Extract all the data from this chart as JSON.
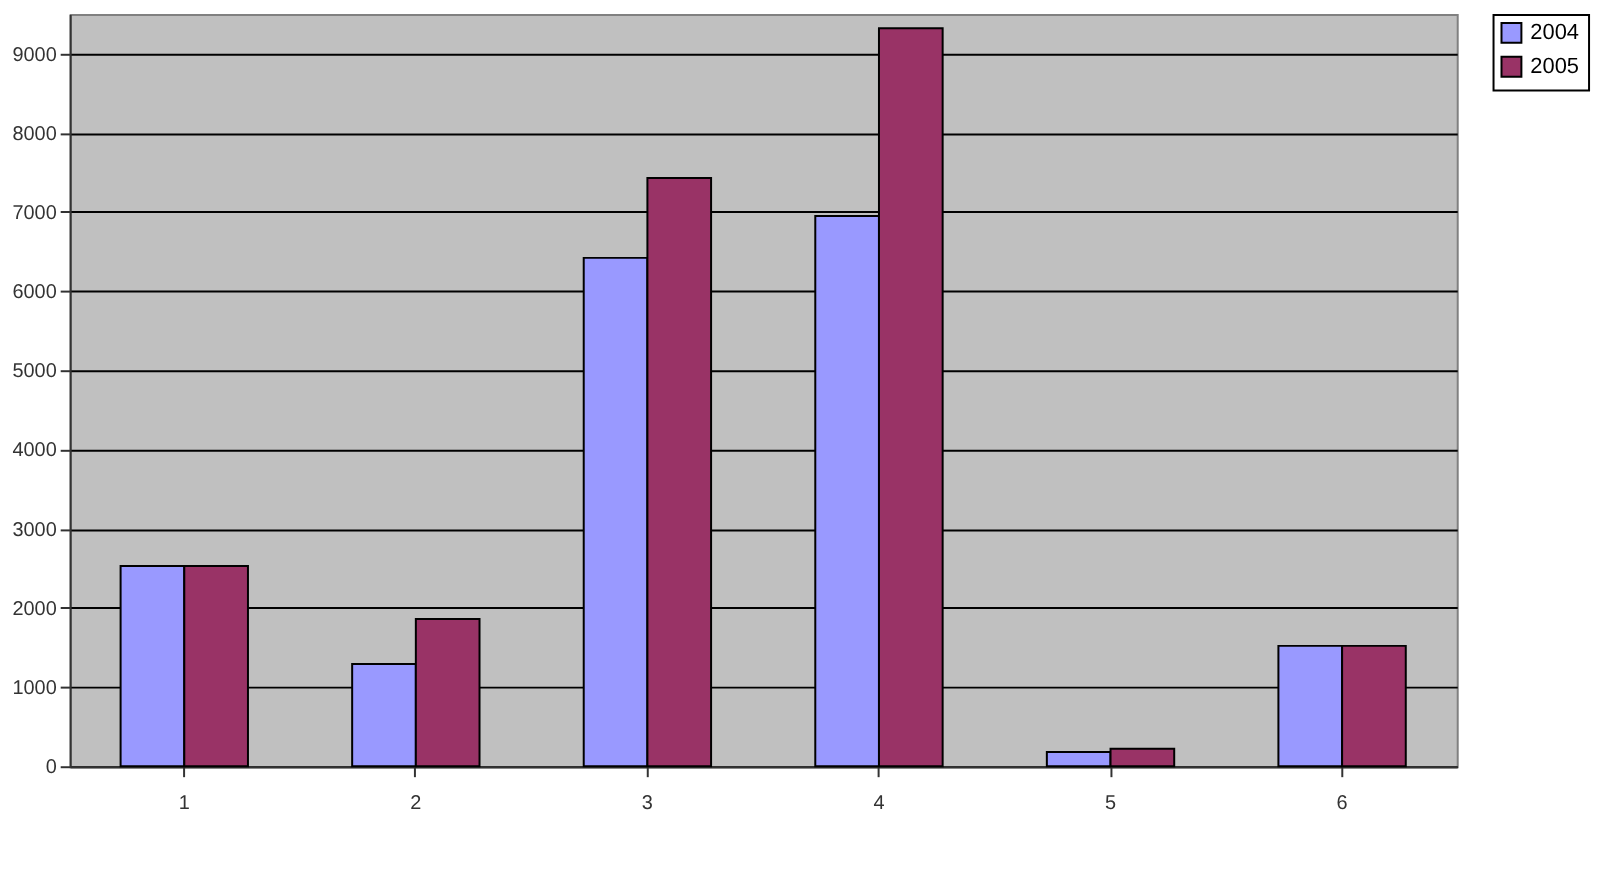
{
  "chart_data": {
    "type": "bar",
    "categories": [
      "1",
      "2",
      "3",
      "4",
      "5",
      "6"
    ],
    "series": [
      {
        "name": "2004",
        "color": "#9999ff",
        "values": [
          2530,
          1290,
          6420,
          6950,
          180,
          1520
        ]
      },
      {
        "name": "2005",
        "color": "#993366",
        "values": [
          2530,
          1860,
          7430,
          9320,
          220,
          1520
        ]
      }
    ],
    "ylim": [
      0,
      9500
    ],
    "yticks": [
      0,
      1000,
      2000,
      3000,
      4000,
      5000,
      6000,
      7000,
      8000,
      9000
    ],
    "grid": "y",
    "legend": "right"
  }
}
